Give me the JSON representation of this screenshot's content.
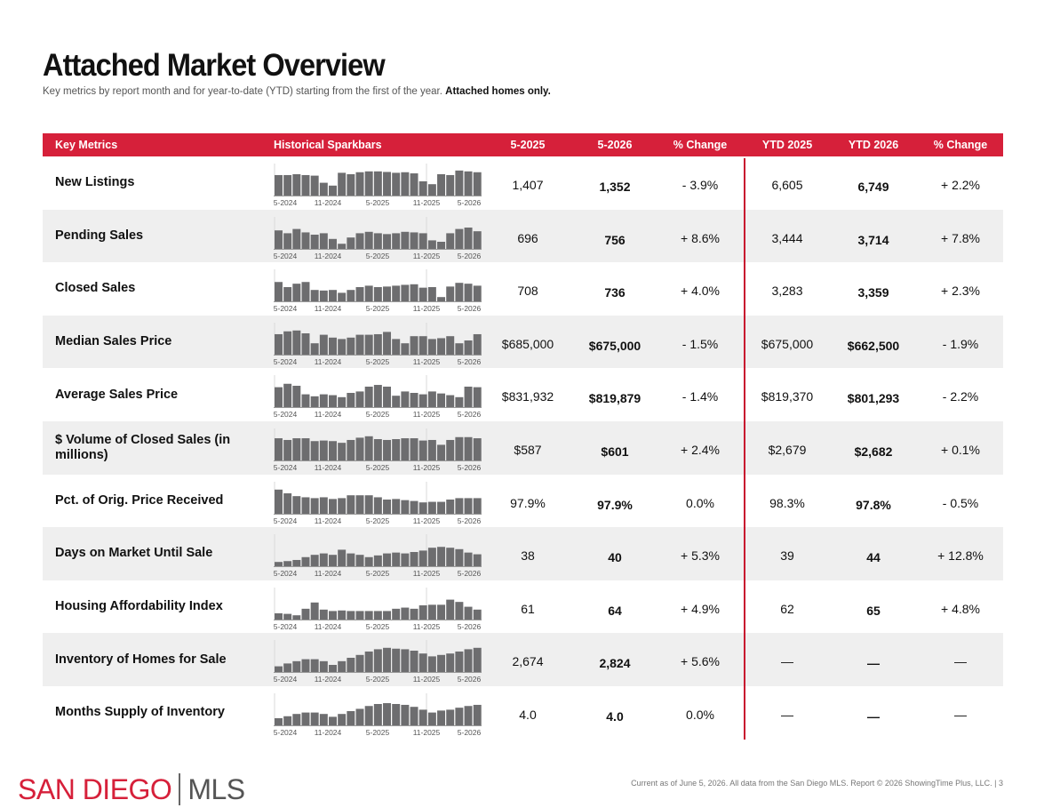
{
  "title": "Attached Market Overview",
  "subtitle": "Key metrics by report month and for year-to-date (YTD) starting from the first of the year.",
  "subtitle_bold": "Attached homes only.",
  "colors": {
    "header": "#d6203a",
    "bar": "#6d6d6f",
    "divider": "#c8102e",
    "logo": "#d6203a"
  },
  "headers": {
    "metric": "Key Metrics",
    "spark": "Historical Sparkbars",
    "m1": "5-2025",
    "m2": "5-2026",
    "chg1": "% Change",
    "y1": "YTD 2025",
    "y2": "YTD 2026",
    "chg2": "% Change"
  },
  "spark_ticks": [
    "5-2024",
    "11-2024",
    "5-2025",
    "11-2025",
    "5-2026"
  ],
  "rows": [
    {
      "name": "New Listings",
      "m1": "1,407",
      "m2": "1,352",
      "chg1": "- 3.9%",
      "y1": "6,605",
      "y2": "6,749",
      "chg2": "+ 2.2%",
      "spark": [
        0.72,
        0.72,
        0.75,
        0.72,
        0.7,
        0.45,
        0.35,
        0.8,
        0.75,
        0.82,
        0.85,
        0.85,
        0.83,
        0.8,
        0.82,
        0.78,
        0.5,
        0.4,
        0.75,
        0.72,
        0.88,
        0.85,
        0.82
      ]
    },
    {
      "name": "Pending Sales",
      "m1": "696",
      "m2": "756",
      "chg1": "+ 8.6%",
      "y1": "3,444",
      "y2": "3,714",
      "chg2": "+ 7.8%",
      "spark": [
        0.65,
        0.55,
        0.7,
        0.58,
        0.5,
        0.55,
        0.35,
        0.18,
        0.4,
        0.55,
        0.6,
        0.55,
        0.52,
        0.55,
        0.6,
        0.58,
        0.55,
        0.3,
        0.25,
        0.55,
        0.7,
        0.75,
        0.62
      ]
    },
    {
      "name": "Closed Sales",
      "m1": "708",
      "m2": "736",
      "chg1": "+ 4.0%",
      "y1": "3,283",
      "y2": "3,359",
      "chg2": "+ 2.3%",
      "spark": [
        0.68,
        0.5,
        0.62,
        0.68,
        0.4,
        0.38,
        0.4,
        0.3,
        0.4,
        0.5,
        0.55,
        0.5,
        0.52,
        0.55,
        0.58,
        0.6,
        0.48,
        0.5,
        0.15,
        0.52,
        0.65,
        0.62,
        0.55
      ]
    },
    {
      "name": "Median Sales Price",
      "m1": "$685,000",
      "m2": "$675,000",
      "chg1": "- 1.5%",
      "y1": "$675,000",
      "y2": "$662,500",
      "chg2": "- 1.9%",
      "spark": [
        0.72,
        0.82,
        0.85,
        0.75,
        0.4,
        0.7,
        0.6,
        0.55,
        0.6,
        0.7,
        0.7,
        0.72,
        0.8,
        0.55,
        0.4,
        0.65,
        0.65,
        0.55,
        0.58,
        0.65,
        0.4,
        0.5,
        0.72
      ]
    },
    {
      "name": "Average Sales Price",
      "m1": "$831,932",
      "m2": "$819,879",
      "chg1": "- 1.4%",
      "y1": "$819,370",
      "y2": "$801,293",
      "chg2": "- 2.2%",
      "spark": [
        0.7,
        0.82,
        0.75,
        0.45,
        0.38,
        0.45,
        0.42,
        0.35,
        0.5,
        0.55,
        0.72,
        0.78,
        0.72,
        0.4,
        0.55,
        0.5,
        0.45,
        0.55,
        0.48,
        0.42,
        0.35,
        0.72,
        0.7
      ]
    },
    {
      "name": "$ Volume of Closed Sales (in millions)",
      "m1": "$587",
      "m2": "$601",
      "chg1": "+ 2.4%",
      "y1": "$2,679",
      "y2": "$2,682",
      "chg2": "+ 0.1%",
      "spark": [
        0.78,
        0.72,
        0.78,
        0.78,
        0.68,
        0.7,
        0.68,
        0.62,
        0.72,
        0.8,
        0.85,
        0.75,
        0.72,
        0.75,
        0.78,
        0.78,
        0.7,
        0.72,
        0.55,
        0.72,
        0.82,
        0.82,
        0.78
      ]
    },
    {
      "name": "Pct. of Orig. Price Received",
      "m1": "97.9%",
      "m2": "97.9%",
      "chg1": "0.0%",
      "y1": "98.3%",
      "y2": "97.8%",
      "chg2": "- 0.5%",
      "spark": [
        0.85,
        0.72,
        0.62,
        0.58,
        0.55,
        0.58,
        0.52,
        0.55,
        0.65,
        0.65,
        0.65,
        0.58,
        0.5,
        0.52,
        0.48,
        0.45,
        0.4,
        0.42,
        0.42,
        0.5,
        0.55,
        0.55,
        0.55
      ]
    },
    {
      "name": "Days on Market Until Sale",
      "m1": "38",
      "m2": "40",
      "chg1": "+ 5.3%",
      "y1": "39",
      "y2": "44",
      "chg2": "+ 12.8%",
      "spark": [
        0.15,
        0.18,
        0.22,
        0.32,
        0.4,
        0.45,
        0.4,
        0.58,
        0.45,
        0.4,
        0.32,
        0.38,
        0.45,
        0.48,
        0.45,
        0.5,
        0.55,
        0.65,
        0.68,
        0.65,
        0.6,
        0.48,
        0.42
      ]
    },
    {
      "name": "Housing Affordability Index",
      "m1": "61",
      "m2": "64",
      "chg1": "+ 4.9%",
      "y1": "62",
      "y2": "65",
      "chg2": "+ 4.8%",
      "spark": [
        0.22,
        0.2,
        0.15,
        0.38,
        0.6,
        0.35,
        0.3,
        0.32,
        0.3,
        0.3,
        0.3,
        0.3,
        0.3,
        0.38,
        0.42,
        0.38,
        0.5,
        0.52,
        0.52,
        0.7,
        0.62,
        0.45,
        0.35
      ]
    },
    {
      "name": "Inventory of Homes for Sale",
      "m1": "2,674",
      "m2": "2,824",
      "chg1": "+ 5.6%",
      "y1": "—",
      "y2": "—",
      "chg2": "—",
      "spark": [
        0.2,
        0.3,
        0.38,
        0.45,
        0.45,
        0.38,
        0.25,
        0.38,
        0.5,
        0.6,
        0.72,
        0.8,
        0.85,
        0.82,
        0.8,
        0.75,
        0.65,
        0.55,
        0.6,
        0.65,
        0.72,
        0.8,
        0.85
      ]
    },
    {
      "name": "Months Supply of Inventory",
      "m1": "4.0",
      "m2": "4.0",
      "chg1": "0.0%",
      "y1": "—",
      "y2": "—",
      "chg2": "—",
      "spark": [
        0.25,
        0.32,
        0.4,
        0.45,
        0.45,
        0.4,
        0.3,
        0.4,
        0.5,
        0.58,
        0.68,
        0.75,
        0.78,
        0.75,
        0.72,
        0.65,
        0.55,
        0.45,
        0.52,
        0.55,
        0.62,
        0.68,
        0.72
      ]
    }
  ],
  "logo": {
    "left": "SAN DIEGO",
    "right": "MLS"
  },
  "footer": "Current as of June 5, 2026. All data from the San Diego MLS. Report © 2026 ShowingTime Plus, LLC. | 3"
}
